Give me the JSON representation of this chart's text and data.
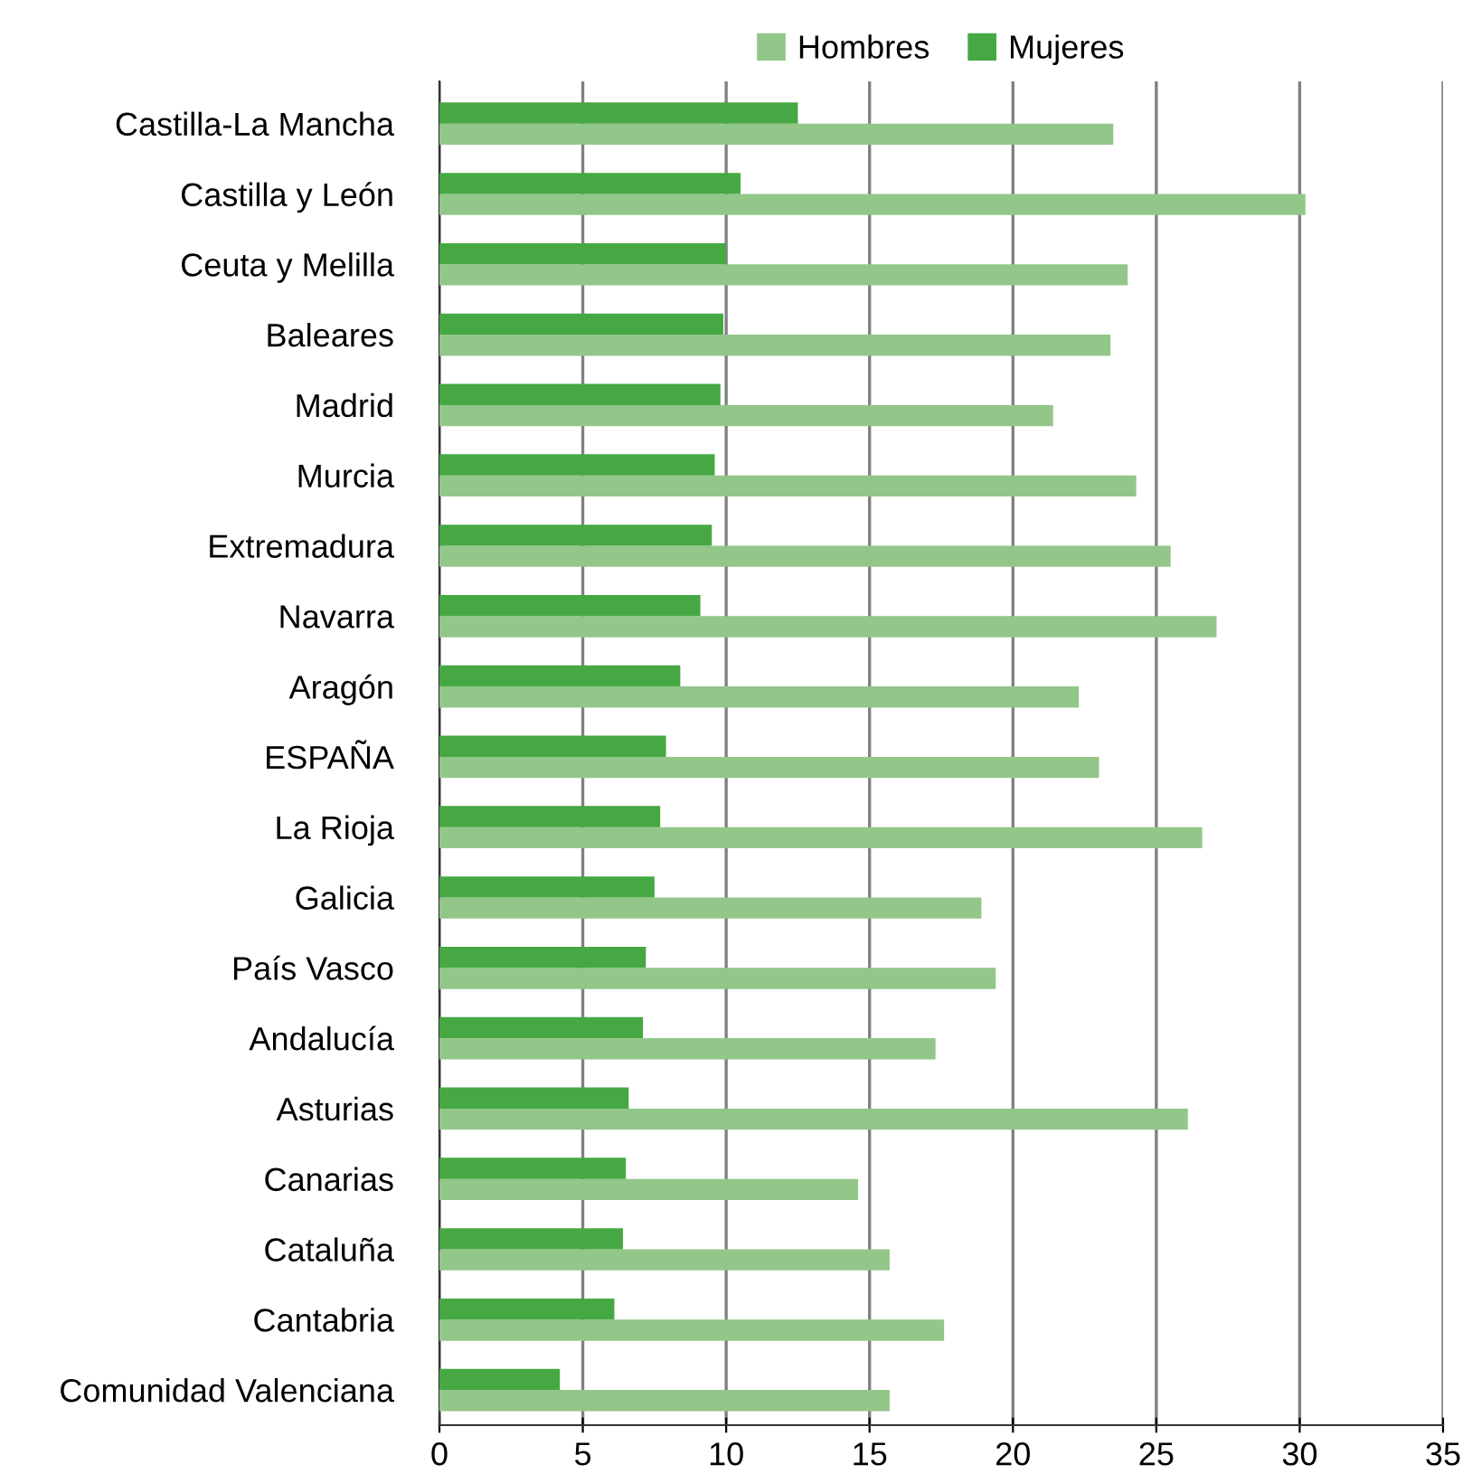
{
  "chart_data": {
    "type": "bar",
    "orientation": "horizontal",
    "categories": [
      "Castilla-La Mancha",
      "Castilla y León",
      "Ceuta y Melilla",
      "Baleares",
      "Madrid",
      "Murcia",
      "Extremadura",
      "Navarra",
      "Aragón",
      "ESPAÑA",
      "La Rioja",
      "Galicia",
      "País Vasco",
      "Andalucía",
      "Asturias",
      "Canarias",
      "Cataluña",
      "Cantabria",
      "Comunidad Valenciana"
    ],
    "series": [
      {
        "name": "Hombres",
        "color": "#93c689",
        "values": [
          23.5,
          30.2,
          24.0,
          23.4,
          21.4,
          24.3,
          25.5,
          27.1,
          22.3,
          23.0,
          26.6,
          18.9,
          19.4,
          17.3,
          26.1,
          14.6,
          15.7,
          17.6,
          15.7
        ]
      },
      {
        "name": "Mujeres",
        "color": "#46a843",
        "values": [
          12.5,
          10.5,
          10.0,
          9.9,
          9.8,
          9.6,
          9.5,
          9.1,
          8.4,
          7.9,
          7.7,
          7.5,
          7.2,
          7.1,
          6.6,
          6.5,
          6.4,
          6.1,
          4.2
        ]
      }
    ],
    "xlim": [
      0,
      35
    ],
    "xticks": [
      0,
      5,
      10,
      15,
      20,
      25,
      30,
      35
    ],
    "grid": "x",
    "legend": "top"
  }
}
